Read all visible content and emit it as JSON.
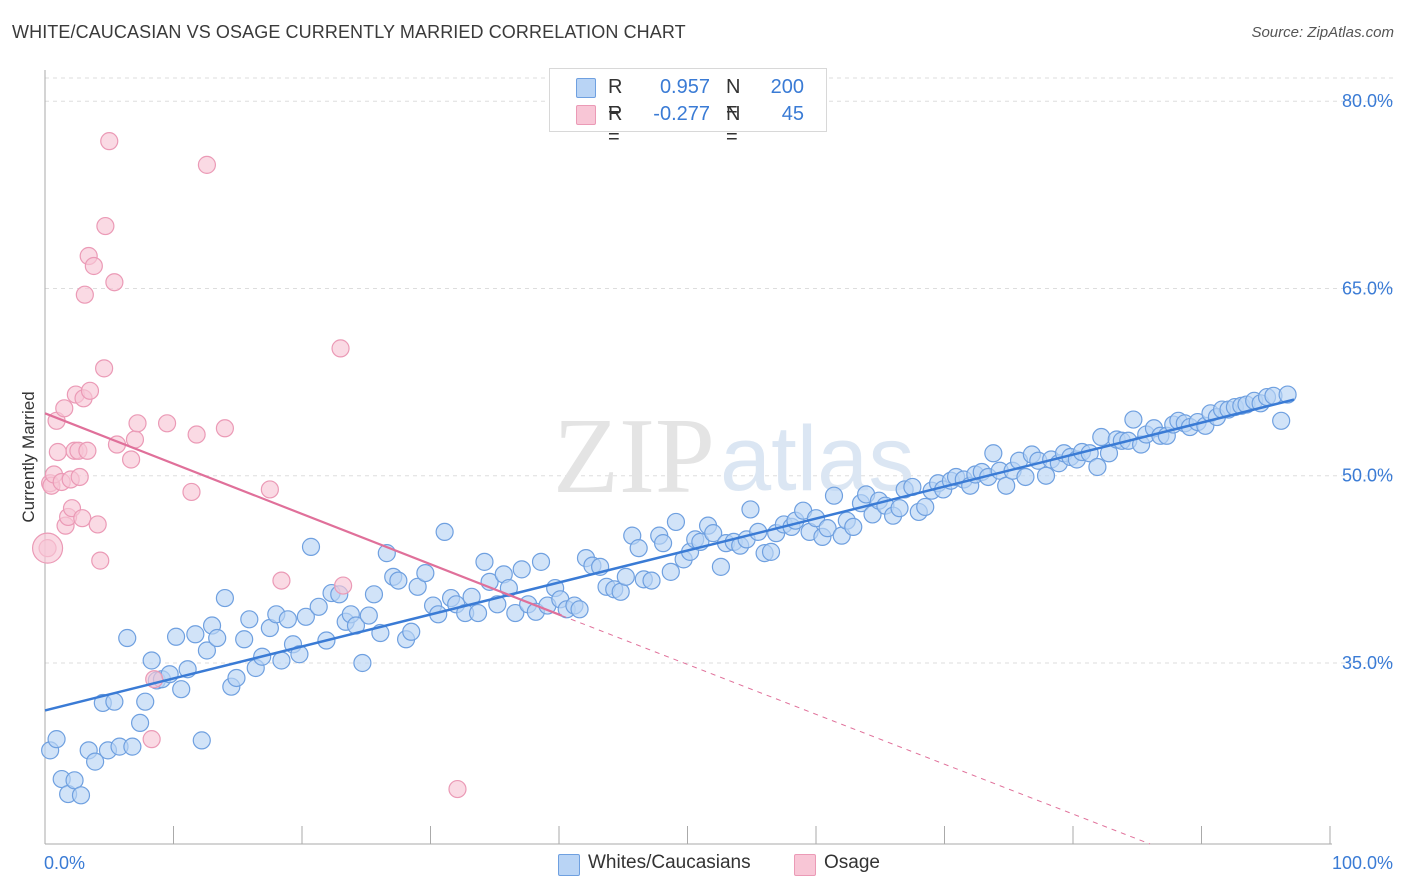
{
  "title": "WHITE/CAUCASIAN VS OSAGE CURRENTLY MARRIED CORRELATION CHART",
  "source": "Source: ZipAtlas.com",
  "watermark": {
    "zip": "ZIP",
    "atlas": "atlas"
  },
  "colors": {
    "blue": "#3a7bd5",
    "blue_fill": "#b9d4f5",
    "blue_stroke": "#6fa0e0",
    "pink": "#e0709a",
    "pink_fill": "#f8c6d6",
    "pink_stroke": "#eb9ab6",
    "grid": "#dddddd",
    "axis": "#aaaaaa",
    "tick_label": "#3a7bd5"
  },
  "legend": [
    {
      "r_label": "R =",
      "r_value": "0.957",
      "n_label": "N =",
      "n_value": "200"
    },
    {
      "r_label": "R =",
      "r_value": "-0.277",
      "n_label": "N =",
      "n_value": "45"
    }
  ],
  "bottom_legend": [
    {
      "label": "Whites/Caucasians"
    },
    {
      "label": "Osage"
    }
  ],
  "chart_data": {
    "type": "scatter",
    "title": "WHITE/CAUCASIAN VS OSAGE CURRENTLY MARRIED CORRELATION CHART",
    "xlabel": "",
    "ylabel": "Currently Married",
    "xlim": [
      0,
      100
    ],
    "ylim": [
      20.5,
      82.5
    ],
    "x_tick_labels": [
      "0.0%",
      "100.0%"
    ],
    "y_ticks": [
      35,
      50,
      65,
      80
    ],
    "y_tick_labels": [
      "35.0%",
      "50.0%",
      "65.0%",
      "80.0%"
    ],
    "grid": true,
    "series": [
      {
        "name": "Whites/Caucasians",
        "color": "#3a7bd5",
        "trend": {
          "x": [
            0,
            97.2
          ],
          "y": [
            31.2,
            56.1
          ]
        },
        "points": [
          [
            0.4,
            28.0
          ],
          [
            0.9,
            28.9
          ],
          [
            1.3,
            25.7
          ],
          [
            1.8,
            24.5
          ],
          [
            2.3,
            25.6
          ],
          [
            2.8,
            24.4
          ],
          [
            3.4,
            28.0
          ],
          [
            3.9,
            27.1
          ],
          [
            4.5,
            31.8
          ],
          [
            4.9,
            28.0
          ],
          [
            5.4,
            31.9
          ],
          [
            5.8,
            28.3
          ],
          [
            6.4,
            37.0
          ],
          [
            6.8,
            28.3
          ],
          [
            7.4,
            30.2
          ],
          [
            7.8,
            31.9
          ],
          [
            8.3,
            35.2
          ],
          [
            8.7,
            33.6
          ],
          [
            9.1,
            33.7
          ],
          [
            9.7,
            34.1
          ],
          [
            10.2,
            37.1
          ],
          [
            10.6,
            32.9
          ],
          [
            11.1,
            34.5
          ],
          [
            11.7,
            37.3
          ],
          [
            12.2,
            28.8
          ],
          [
            12.6,
            36.0
          ],
          [
            13.0,
            38.0
          ],
          [
            13.4,
            37.0
          ],
          [
            14.0,
            40.2
          ],
          [
            14.5,
            33.1
          ],
          [
            14.9,
            33.8
          ],
          [
            15.5,
            36.9
          ],
          [
            15.9,
            38.5
          ],
          [
            16.4,
            34.6
          ],
          [
            16.9,
            35.5
          ],
          [
            17.5,
            37.8
          ],
          [
            18.0,
            38.9
          ],
          [
            18.4,
            35.2
          ],
          [
            18.9,
            38.5
          ],
          [
            19.3,
            36.5
          ],
          [
            19.8,
            35.7
          ],
          [
            20.3,
            38.7
          ],
          [
            20.7,
            44.3
          ],
          [
            21.3,
            39.5
          ],
          [
            21.9,
            36.8
          ],
          [
            22.3,
            40.6
          ],
          [
            22.9,
            40.5
          ],
          [
            23.4,
            38.3
          ],
          [
            23.8,
            38.9
          ],
          [
            24.2,
            38.0
          ],
          [
            24.7,
            35.0
          ],
          [
            25.2,
            38.8
          ],
          [
            25.6,
            40.5
          ],
          [
            26.1,
            37.4
          ],
          [
            26.6,
            43.8
          ],
          [
            27.1,
            41.9
          ],
          [
            27.5,
            41.6
          ],
          [
            28.1,
            36.9
          ],
          [
            28.5,
            37.5
          ],
          [
            29.0,
            41.1
          ],
          [
            29.6,
            42.2
          ],
          [
            30.2,
            39.6
          ],
          [
            30.6,
            38.9
          ],
          [
            31.1,
            45.5
          ],
          [
            31.6,
            40.2
          ],
          [
            32.0,
            39.7
          ],
          [
            32.7,
            39.0
          ],
          [
            33.2,
            40.3
          ],
          [
            33.7,
            39.0
          ],
          [
            34.2,
            43.1
          ],
          [
            34.6,
            41.5
          ],
          [
            35.2,
            39.7
          ],
          [
            35.7,
            42.1
          ],
          [
            36.1,
            41.0
          ],
          [
            36.6,
            39.0
          ],
          [
            37.1,
            42.5
          ],
          [
            37.6,
            39.7
          ],
          [
            38.2,
            39.1
          ],
          [
            38.6,
            43.1
          ],
          [
            39.1,
            39.6
          ],
          [
            39.7,
            41.0
          ],
          [
            40.1,
            40.1
          ],
          [
            40.6,
            39.3
          ],
          [
            41.2,
            39.6
          ],
          [
            41.6,
            39.3
          ],
          [
            42.1,
            43.4
          ],
          [
            42.6,
            42.8
          ],
          [
            43.2,
            42.7
          ],
          [
            43.7,
            41.1
          ],
          [
            44.3,
            40.9
          ],
          [
            44.8,
            40.7
          ],
          [
            45.2,
            41.9
          ],
          [
            45.7,
            45.2
          ],
          [
            46.2,
            44.2
          ],
          [
            46.6,
            41.7
          ],
          [
            47.2,
            41.6
          ],
          [
            47.8,
            45.2
          ],
          [
            48.1,
            44.6
          ],
          [
            48.7,
            42.3
          ],
          [
            49.1,
            46.3
          ],
          [
            49.7,
            43.3
          ],
          [
            50.2,
            43.9
          ],
          [
            50.6,
            44.9
          ],
          [
            51.0,
            44.7
          ],
          [
            51.6,
            46.0
          ],
          [
            52.0,
            45.4
          ],
          [
            52.6,
            42.7
          ],
          [
            53.0,
            44.6
          ],
          [
            53.6,
            44.7
          ],
          [
            54.1,
            44.4
          ],
          [
            54.6,
            44.9
          ],
          [
            54.9,
            47.3
          ],
          [
            55.5,
            45.5
          ],
          [
            56.0,
            43.8
          ],
          [
            56.5,
            43.9
          ],
          [
            56.9,
            45.4
          ],
          [
            57.5,
            46.1
          ],
          [
            58.1,
            45.9
          ],
          [
            58.4,
            46.4
          ],
          [
            59.0,
            47.2
          ],
          [
            59.5,
            45.5
          ],
          [
            60.0,
            46.6
          ],
          [
            60.5,
            45.1
          ],
          [
            60.9,
            45.8
          ],
          [
            61.4,
            48.4
          ],
          [
            62.0,
            45.2
          ],
          [
            62.4,
            46.4
          ],
          [
            62.9,
            45.9
          ],
          [
            63.5,
            47.8
          ],
          [
            63.9,
            48.5
          ],
          [
            64.4,
            46.9
          ],
          [
            64.9,
            48.0
          ],
          [
            65.4,
            47.6
          ],
          [
            66.0,
            46.8
          ],
          [
            66.5,
            47.4
          ],
          [
            66.9,
            48.9
          ],
          [
            67.5,
            49.1
          ],
          [
            68.0,
            47.1
          ],
          [
            68.5,
            47.5
          ],
          [
            69.0,
            48.8
          ],
          [
            69.5,
            49.4
          ],
          [
            69.9,
            48.9
          ],
          [
            70.5,
            49.6
          ],
          [
            70.9,
            49.9
          ],
          [
            71.5,
            49.7
          ],
          [
            72.0,
            49.2
          ],
          [
            72.4,
            50.1
          ],
          [
            72.9,
            50.3
          ],
          [
            73.4,
            49.9
          ],
          [
            73.8,
            51.8
          ],
          [
            74.3,
            50.4
          ],
          [
            74.8,
            49.2
          ],
          [
            75.3,
            50.4
          ],
          [
            75.8,
            51.2
          ],
          [
            76.3,
            49.9
          ],
          [
            76.8,
            51.7
          ],
          [
            77.3,
            51.2
          ],
          [
            77.9,
            50.0
          ],
          [
            78.3,
            51.3
          ],
          [
            78.9,
            51.0
          ],
          [
            79.3,
            51.8
          ],
          [
            79.8,
            51.5
          ],
          [
            80.3,
            51.3
          ],
          [
            80.7,
            51.9
          ],
          [
            81.3,
            51.8
          ],
          [
            81.9,
            50.7
          ],
          [
            82.2,
            53.1
          ],
          [
            82.8,
            51.8
          ],
          [
            83.4,
            52.9
          ],
          [
            83.8,
            52.8
          ],
          [
            84.3,
            52.8
          ],
          [
            84.7,
            54.5
          ],
          [
            85.3,
            52.5
          ],
          [
            85.7,
            53.3
          ],
          [
            86.3,
            53.8
          ],
          [
            86.8,
            53.2
          ],
          [
            87.3,
            53.2
          ],
          [
            87.8,
            54.1
          ],
          [
            88.2,
            54.4
          ],
          [
            88.7,
            54.2
          ],
          [
            89.1,
            53.9
          ],
          [
            89.7,
            54.3
          ],
          [
            90.3,
            54.0
          ],
          [
            90.7,
            55.0
          ],
          [
            91.2,
            54.7
          ],
          [
            91.6,
            55.3
          ],
          [
            92.1,
            55.3
          ],
          [
            92.6,
            55.5
          ],
          [
            93.1,
            55.6
          ],
          [
            93.5,
            55.7
          ],
          [
            94.1,
            56.0
          ],
          [
            94.6,
            55.8
          ],
          [
            95.1,
            56.3
          ],
          [
            95.6,
            56.4
          ],
          [
            96.2,
            54.4
          ],
          [
            96.7,
            56.5
          ]
        ]
      },
      {
        "name": "Osage",
        "color": "#e0709a",
        "trend": {
          "x": [
            0,
            40.2
          ],
          "y": [
            55.0,
            38.8
          ]
        },
        "trend_extension": {
          "x": [
            40.2,
            86
          ],
          "y": [
            38.8,
            20.5
          ]
        },
        "points": [
          [
            0.2,
            44.2
          ],
          [
            0.4,
            49.4
          ],
          [
            0.5,
            49.2
          ],
          [
            0.7,
            50.1
          ],
          [
            0.9,
            54.4
          ],
          [
            1.0,
            51.9
          ],
          [
            1.3,
            49.5
          ],
          [
            1.5,
            55.4
          ],
          [
            1.6,
            46.0
          ],
          [
            1.8,
            46.7
          ],
          [
            2.0,
            49.7
          ],
          [
            2.1,
            47.4
          ],
          [
            2.3,
            52.0
          ],
          [
            2.4,
            56.5
          ],
          [
            2.6,
            52.0
          ],
          [
            2.7,
            49.9
          ],
          [
            2.9,
            46.6
          ],
          [
            3.0,
            56.2
          ],
          [
            3.1,
            64.5
          ],
          [
            3.3,
            52.0
          ],
          [
            3.4,
            67.6
          ],
          [
            3.5,
            56.8
          ],
          [
            3.8,
            66.8
          ],
          [
            4.1,
            46.1
          ],
          [
            4.3,
            43.2
          ],
          [
            4.6,
            58.6
          ],
          [
            4.7,
            70.0
          ],
          [
            5.0,
            76.8
          ],
          [
            5.4,
            65.5
          ],
          [
            5.6,
            52.5
          ],
          [
            6.7,
            51.3
          ],
          [
            7.0,
            52.9
          ],
          [
            7.2,
            54.2
          ],
          [
            8.3,
            28.9
          ],
          [
            8.5,
            33.7
          ],
          [
            9.5,
            54.2
          ],
          [
            11.4,
            48.7
          ],
          [
            11.8,
            53.3
          ],
          [
            12.6,
            74.9
          ],
          [
            14.0,
            53.8
          ],
          [
            17.5,
            48.9
          ],
          [
            18.4,
            41.6
          ],
          [
            23.0,
            60.2
          ],
          [
            23.2,
            41.2
          ],
          [
            32.1,
            24.9
          ]
        ]
      }
    ]
  }
}
